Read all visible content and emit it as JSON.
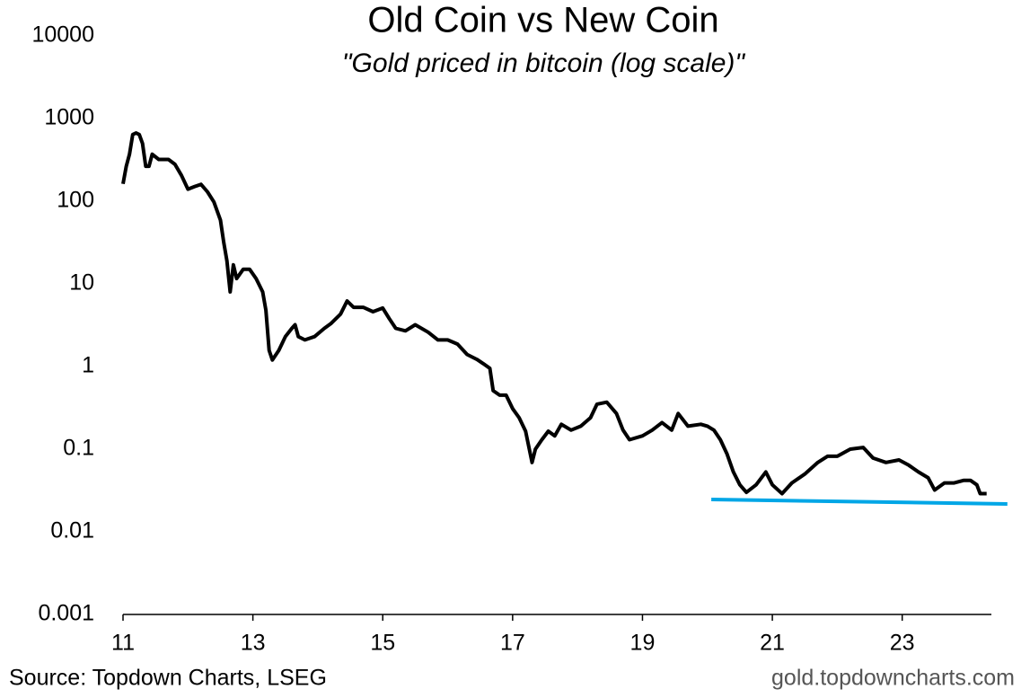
{
  "chart_data": {
    "type": "line",
    "title": "Old Coin vs New Coin",
    "subtitle": "\"Gold priced in bitcoin (log scale)\"",
    "source": "Source: Topdown Charts, LSEG",
    "watermark": "gold.topdowncharts.com",
    "log_scale_y": true,
    "x": [
      11.0,
      11.05,
      11.1,
      11.15,
      11.2,
      11.25,
      11.3,
      11.35,
      11.4,
      11.45,
      11.55,
      11.7,
      11.8,
      11.9,
      12.0,
      12.1,
      12.2,
      12.3,
      12.4,
      12.5,
      12.55,
      12.6,
      12.65,
      12.7,
      12.75,
      12.85,
      12.95,
      13.05,
      13.15,
      13.2,
      13.25,
      13.3,
      13.4,
      13.5,
      13.6,
      13.65,
      13.7,
      13.8,
      13.95,
      14.1,
      14.2,
      14.35,
      14.45,
      14.55,
      14.7,
      14.85,
      15.0,
      15.1,
      15.2,
      15.35,
      15.5,
      15.7,
      15.85,
      16.0,
      16.15,
      16.3,
      16.45,
      16.55,
      16.65,
      16.7,
      16.8,
      16.9,
      17.0,
      17.1,
      17.2,
      17.3,
      17.35,
      17.45,
      17.55,
      17.65,
      17.75,
      17.9,
      18.05,
      18.2,
      18.3,
      18.45,
      18.6,
      18.7,
      18.8,
      19.0,
      19.15,
      19.3,
      19.45,
      19.55,
      19.7,
      19.9,
      20.0,
      20.1,
      20.2,
      20.3,
      20.4,
      20.5,
      20.6,
      20.75,
      20.9,
      21.0,
      21.15,
      21.3,
      21.5,
      21.7,
      21.85,
      22.0,
      22.2,
      22.4,
      22.55,
      22.75,
      22.95,
      23.1,
      23.25,
      23.4,
      23.5,
      23.65,
      23.8,
      23.95,
      24.05,
      24.15,
      24.2,
      24.3
    ],
    "series": [
      {
        "name": "Gold priced in bitcoin",
        "color": "#000000",
        "values": [
          162,
          265,
          370,
          640,
          670,
          640,
          500,
          265,
          265,
          370,
          320,
          320,
          280,
          205,
          140,
          150,
          160,
          130,
          98,
          59,
          32,
          19,
          8,
          17,
          11.6,
          15,
          15,
          11.6,
          8,
          4.8,
          1.57,
          1.2,
          1.57,
          2.3,
          2.9,
          3.2,
          2.3,
          2.1,
          2.3,
          2.9,
          3.3,
          4.3,
          6.2,
          5.2,
          5.2,
          4.6,
          5.1,
          3.8,
          2.9,
          2.7,
          3.2,
          2.6,
          2.1,
          2.1,
          1.87,
          1.4,
          1.22,
          1.08,
          0.95,
          0.51,
          0.45,
          0.45,
          0.31,
          0.24,
          0.165,
          0.069,
          0.1,
          0.13,
          0.165,
          0.145,
          0.2,
          0.17,
          0.19,
          0.24,
          0.35,
          0.37,
          0.27,
          0.17,
          0.13,
          0.145,
          0.17,
          0.21,
          0.17,
          0.27,
          0.19,
          0.2,
          0.19,
          0.17,
          0.13,
          0.088,
          0.053,
          0.037,
          0.03,
          0.037,
          0.053,
          0.037,
          0.029,
          0.039,
          0.05,
          0.069,
          0.082,
          0.082,
          0.1,
          0.105,
          0.078,
          0.069,
          0.074,
          0.064,
          0.053,
          0.045,
          0.032,
          0.039,
          0.039,
          0.042,
          0.042,
          0.037,
          0.029,
          0.029
        ]
      }
    ],
    "trendline": {
      "x": [
        20.06,
        24.62
      ],
      "values": [
        0.0246,
        0.0217
      ],
      "color": "#00a6e6"
    },
    "xlim": [
      11,
      24.65
    ],
    "xticks": [
      11,
      13,
      15,
      17,
      19,
      21,
      23
    ],
    "ylim": [
      0.001,
      10000
    ],
    "yticks": [
      0.001,
      0.01,
      0.1,
      1,
      10,
      100,
      1000,
      10000
    ]
  }
}
